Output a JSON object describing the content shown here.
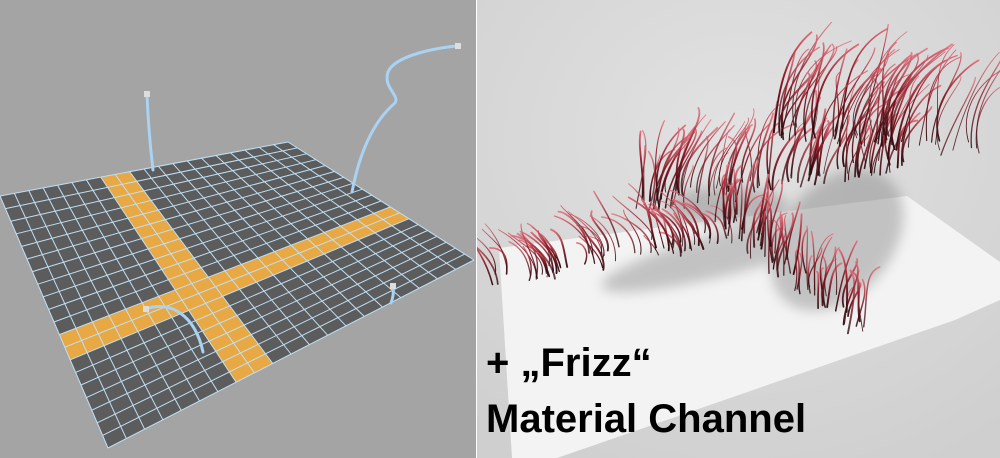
{
  "caption": {
    "line1": "+ „Frizz“",
    "line2": "Material Channel"
  },
  "left_viewport": {
    "content": "grid-plane-with-guide-splines",
    "colors": {
      "background": "#a4a4a4",
      "plane_fill": "#5c5c5c",
      "grid_lines": "#bfe0f6",
      "selection_fill": "#e8a843",
      "guide_splines": "#a9d2f3",
      "spline_handles": "#dddddd"
    }
  },
  "right_render": {
    "content": "rendered-hair-on-plane",
    "colors": {
      "background": "#d8d8d8",
      "plane": "#f4f4f4",
      "hair_root": "#2a0a0e",
      "hair_tip": "#e06a78"
    }
  }
}
